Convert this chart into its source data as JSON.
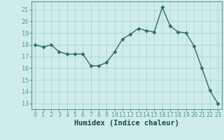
{
  "x": [
    0,
    1,
    2,
    3,
    4,
    5,
    6,
    7,
    8,
    9,
    10,
    11,
    12,
    13,
    14,
    15,
    16,
    17,
    18,
    19,
    20,
    21,
    22,
    23
  ],
  "y": [
    18.0,
    17.8,
    18.0,
    17.4,
    17.2,
    17.2,
    17.2,
    16.2,
    16.2,
    16.5,
    17.4,
    18.5,
    18.9,
    19.4,
    19.2,
    19.1,
    21.2,
    19.6,
    19.1,
    19.0,
    17.9,
    16.0,
    14.1,
    13.0
  ],
  "xlabel": "Humidex (Indice chaleur)",
  "ylim": [
    12.5,
    21.7
  ],
  "yticks": [
    13,
    14,
    15,
    16,
    17,
    18,
    19,
    20,
    21
  ],
  "xlim": [
    -0.5,
    23.5
  ],
  "xticks": [
    0,
    1,
    2,
    3,
    4,
    5,
    6,
    7,
    8,
    9,
    10,
    11,
    12,
    13,
    14,
    15,
    16,
    17,
    18,
    19,
    20,
    21,
    22,
    23
  ],
  "line_color": "#2e6e62",
  "bg_color": "#ceecea",
  "grid_color": "#aed4d0",
  "spine_color": "#5a9a90",
  "marker": "D",
  "marker_size": 2.5,
  "line_width": 1.0,
  "tick_fontsize": 6.0,
  "xlabel_fontsize": 7.5
}
